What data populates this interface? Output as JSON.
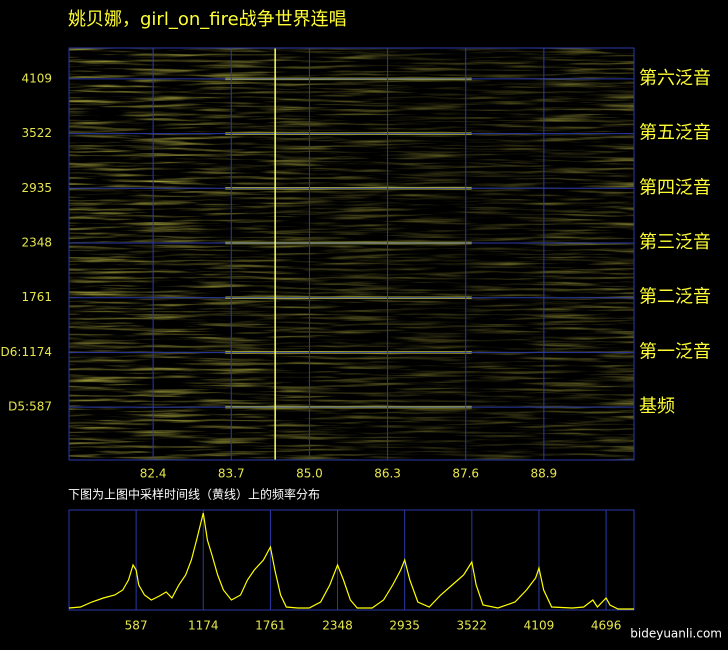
{
  "watermark": "bideyuanli.com",
  "chart_data": [
    {
      "type": "heatmap",
      "title": "姚贝娜，girl_on_fire战争世界连唱",
      "xlim": [
        81.0,
        90.4
      ],
      "xticks": [
        82.4,
        83.7,
        {
          "value": 85,
          "label": "85.0"
        },
        86.3,
        87.6,
        88.9
      ],
      "ylim": [
        20,
        4440
      ],
      "yticks": [
        4109,
        3522,
        2935,
        2348,
        1761,
        {
          "value": 1174,
          "label": "D6:1174"
        },
        {
          "value": 587,
          "label": "D5:587"
        }
      ],
      "grid": true,
      "color": "#ffff33",
      "cursor": 84.43,
      "harmonics": [
        {
          "label": "第六泛音",
          "value": 4109
        },
        {
          "label": "第五泛音",
          "value": 3522
        },
        {
          "label": "第四泛音",
          "value": 2935
        },
        {
          "label": "第三泛音",
          "value": 2348
        },
        {
          "label": "第二泛音",
          "value": 1761
        },
        {
          "label": "第一泛音",
          "value": 1174
        },
        {
          "label": "基频",
          "value": 587
        }
      ]
    },
    {
      "type": "line",
      "title": "下图为上图中采样时间线（黄线）上的频率分布",
      "xlim": [
        0,
        4940
      ],
      "xticks": [
        587,
        1174,
        1761,
        2348,
        2935,
        3522,
        4109,
        4696
      ],
      "ylim": [
        0,
        100
      ],
      "grid": true,
      "color": "#ffff00",
      "x": [
        0,
        100,
        200,
        300,
        400,
        470,
        520,
        560,
        587,
        610,
        660,
        720,
        790,
        850,
        900,
        960,
        1020,
        1070,
        1120,
        1174,
        1210,
        1250,
        1300,
        1350,
        1420,
        1500,
        1560,
        1620,
        1700,
        1761,
        1800,
        1850,
        1900,
        2000,
        2100,
        2200,
        2280,
        2348,
        2400,
        2460,
        2520,
        2650,
        2750,
        2830,
        2900,
        2935,
        2980,
        3050,
        3150,
        3250,
        3350,
        3450,
        3522,
        3560,
        3620,
        3750,
        3900,
        4000,
        4080,
        4109,
        4150,
        4220,
        4400,
        4500,
        4580,
        4620,
        4696,
        4730,
        4800,
        4940
      ],
      "values": [
        2,
        3,
        8,
        12,
        15,
        20,
        30,
        45,
        40,
        25,
        15,
        10,
        14,
        18,
        12,
        25,
        35,
        50,
        72,
        97,
        70,
        55,
        35,
        20,
        10,
        15,
        30,
        40,
        50,
        63,
        40,
        15,
        3,
        2,
        2,
        8,
        25,
        45,
        30,
        10,
        2,
        2,
        10,
        25,
        40,
        50,
        30,
        8,
        3,
        15,
        25,
        35,
        48,
        25,
        5,
        2,
        8,
        20,
        32,
        42,
        20,
        3,
        2,
        3,
        10,
        3,
        12,
        5,
        1,
        1
      ]
    }
  ]
}
